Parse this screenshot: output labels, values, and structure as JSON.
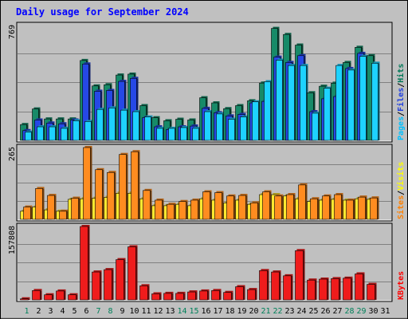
{
  "chart_data": {
    "type": "bar",
    "title": "Daily usage for September 2024",
    "categories": [
      "1",
      "2",
      "3",
      "4",
      "5",
      "6",
      "7",
      "8",
      "9",
      "10",
      "11",
      "12",
      "13",
      "14",
      "15",
      "16",
      "17",
      "18",
      "19",
      "20",
      "21",
      "22",
      "23",
      "24",
      "25",
      "26",
      "27",
      "28",
      "29",
      "30",
      "31"
    ],
    "weekend_days": [
      "1",
      "7",
      "8",
      "14",
      "15",
      "21",
      "22",
      "28",
      "29"
    ],
    "panels": [
      {
        "key": "top",
        "max_label": "769",
        "ymax": 769,
        "legend": [
          {
            "text": "Pages",
            "color": "#00c0ff"
          },
          {
            "text": "/",
            "color": "#000000"
          },
          {
            "text": "Files",
            "color": "#2040e0"
          },
          {
            "text": "/",
            "color": "#000000"
          },
          {
            "text": "Hits",
            "color": "#007858"
          }
        ],
        "series": [
          {
            "name": "Hits",
            "color": "#178a68",
            "values": [
              115,
              218,
              152,
              152,
              152,
              538,
              370,
              378,
              442,
              448,
              240,
              160,
              140,
              150,
              145,
              292,
              258,
              220,
              240,
              272,
              389,
              750,
              710,
              640,
              325,
              368,
              388,
              525,
              625,
              570,
              0
            ]
          },
          {
            "name": "Files",
            "color": "#2648e6",
            "values": [
              75,
              145,
              125,
              120,
              145,
              515,
              335,
              340,
              400,
              420,
              160,
              100,
              82,
              100,
              105,
              222,
              193,
              172,
              182,
              258,
              268,
              560,
              525,
              570,
              200,
              285,
              300,
              485,
              585,
              0,
              0
            ]
          },
          {
            "name": "Pages",
            "color": "#1ed2ff",
            "values": [
              65,
              100,
              100,
              90,
              140,
              135,
              215,
              225,
              210,
              200,
              165,
              90,
              90,
              95,
              90,
              200,
              185,
              150,
              165,
              265,
              398,
              540,
              505,
              505,
              190,
              355,
              505,
              475,
              565,
              520,
              0
            ]
          }
        ]
      },
      {
        "key": "middle",
        "max_label": "265",
        "ymax": 265,
        "legend": [
          {
            "text": "Sites",
            "color": "#ff8000"
          },
          {
            "text": "/",
            "color": "#000000"
          },
          {
            "text": "Visits",
            "color": "#ffff00"
          }
        ],
        "series": [
          {
            "name": "Visits",
            "color": "#ffe830",
            "values": [
              35,
              50,
              40,
              35,
              78,
              80,
              82,
              85,
              100,
              100,
              80,
              55,
              55,
              60,
              55,
              80,
              75,
              65,
              75,
              60,
              95,
              95,
              90,
              80,
              70,
              75,
              78,
              75,
              80,
              78,
              0
            ]
          },
          {
            "name": "Sites",
            "color": "#ff8c20",
            "values": [
              50,
              117,
              92,
              35,
              82,
              265,
              185,
              175,
              240,
              250,
              110,
              75,
              60,
              70,
              75,
              105,
              102,
              90,
              92,
              65,
              105,
              90,
              95,
              130,
              80,
              90,
              95,
              75,
              86,
              83,
              0
            ]
          }
        ]
      },
      {
        "key": "bottom",
        "max_label": "157808",
        "ymax": 157808,
        "legend": [
          {
            "text": "KBytes",
            "color": "#ff0000"
          }
        ],
        "series": [
          {
            "name": "KBytes",
            "color": "#ef1c1c",
            "values": [
              5500,
              23000,
              14000,
              22000,
              14000,
              157808,
              62000,
              67000,
              88000,
              115000,
              33000,
              16000,
              17000,
              17000,
              20000,
              22000,
              23000,
              19000,
              31000,
              25000,
              65000,
              62000,
              54000,
              107000,
              45000,
              47000,
              48000,
              49000,
              58000,
              36000,
              0
            ]
          }
        ]
      }
    ]
  }
}
